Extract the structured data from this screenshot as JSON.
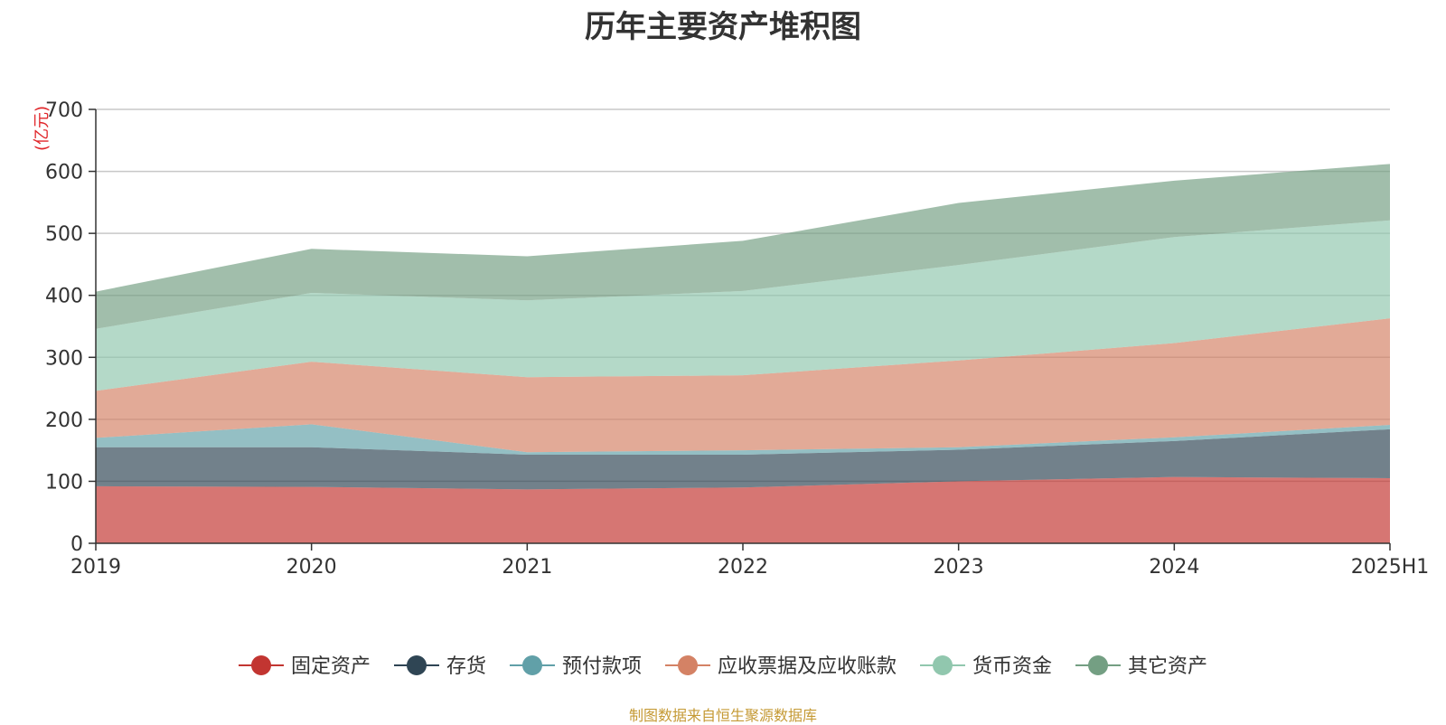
{
  "title": "历年主要资产堆积图",
  "source": "制图数据来自恒生聚源数据库",
  "chart_data": {
    "type": "area",
    "stacked": true,
    "title": "历年主要资产堆积图",
    "ylabel": "(亿元)",
    "xlabel": "",
    "ylim": [
      0,
      700
    ],
    "yticks": [
      0,
      100,
      200,
      300,
      400,
      500,
      600,
      700
    ],
    "categories": [
      "2019",
      "2020",
      "2021",
      "2022",
      "2023",
      "2024",
      "2025H1"
    ],
    "grid": true,
    "legend_position": "bottom",
    "series": [
      {
        "name": "固定资产",
        "color": "#c23531",
        "values": [
          92,
          91,
          87,
          90,
          100,
          107,
          105
        ]
      },
      {
        "name": "存货",
        "color": "#2f4554",
        "values": [
          63,
          64,
          56,
          53,
          51,
          58,
          79
        ]
      },
      {
        "name": "预付款项",
        "color": "#61a0a8",
        "values": [
          15,
          37,
          4,
          7,
          4,
          6,
          7
        ]
      },
      {
        "name": "应收票据及应收账款",
        "color": "#d48265",
        "values": [
          76,
          101,
          121,
          121,
          140,
          152,
          172
        ]
      },
      {
        "name": "货币资金",
        "color": "#91c7ae",
        "values": [
          100,
          111,
          124,
          136,
          154,
          171,
          158
        ]
      },
      {
        "name": "其它资产",
        "color": "#749f83",
        "values": [
          60,
          71,
          71,
          81,
          100,
          91,
          91
        ]
      }
    ]
  }
}
